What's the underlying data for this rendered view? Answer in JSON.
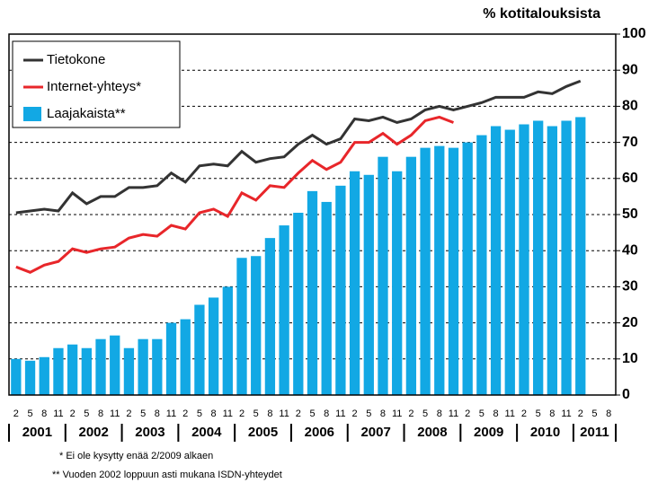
{
  "chart_data": {
    "type": "bar-line",
    "y_label": "% kotitalouksista",
    "categories": [
      "2",
      "5",
      "8",
      "11",
      "2",
      "5",
      "8",
      "11",
      "2",
      "5",
      "8",
      "11",
      "2",
      "5",
      "8",
      "11",
      "2",
      "5",
      "8",
      "11",
      "2",
      "5",
      "8",
      "11",
      "2",
      "5",
      "8",
      "11",
      "2",
      "5",
      "8",
      "11",
      "2",
      "5",
      "8",
      "11",
      "2",
      "5",
      "8",
      "11",
      "2",
      "5",
      "8"
    ],
    "years": [
      "2001",
      "2002",
      "2003",
      "2004",
      "2005",
      "2006",
      "2007",
      "2008",
      "2009",
      "2010",
      "2011"
    ],
    "series": [
      {
        "name": "Tietokone",
        "kind": "line",
        "color": "#333333",
        "values": [
          50.5,
          51,
          51.5,
          51,
          56,
          53,
          55,
          55,
          57.5,
          57.5,
          58,
          61.5,
          59,
          63.5,
          64,
          63.5,
          67.5,
          64.5,
          65.5,
          66,
          69.5,
          72,
          69.5,
          71,
          76.5,
          76,
          77,
          75.5,
          76.5,
          79,
          80,
          79,
          80,
          81,
          82.5,
          82.5,
          82.5,
          84,
          83.5,
          85.5,
          87,
          null,
          null
        ]
      },
      {
        "name": "Internet-yhteys*",
        "kind": "line",
        "color": "#e8262a",
        "values": [
          35.5,
          34,
          36,
          37,
          40.5,
          39.5,
          40.5,
          41,
          43.5,
          44.5,
          44,
          47,
          46,
          50.5,
          51.5,
          49.5,
          56,
          54,
          58,
          57.5,
          61.5,
          65,
          62.5,
          64.5,
          70,
          70,
          72.5,
          69.5,
          72,
          76,
          77,
          75.5,
          null,
          null,
          null,
          null,
          null,
          null,
          null,
          null,
          null,
          null,
          null
        ]
      },
      {
        "name": "Laajakaista**",
        "kind": "bar",
        "color": "#12a8e4",
        "values": [
          10,
          9.5,
          10.5,
          13,
          14,
          13,
          15.5,
          16.5,
          13,
          15.5,
          15.5,
          20,
          21,
          25,
          27,
          30,
          38,
          38.5,
          43.5,
          47,
          50.5,
          56.5,
          53.5,
          58,
          62,
          61,
          66,
          62,
          66,
          68.5,
          69,
          68.5,
          70,
          72,
          74.5,
          73.5,
          75,
          76,
          74.5,
          76,
          77,
          null,
          null
        ]
      }
    ],
    "ylim": [
      0,
      100
    ],
    "yticks": [
      0,
      10,
      20,
      30,
      40,
      50,
      60,
      70,
      80,
      90,
      100
    ],
    "grid": true,
    "legend": "top-left",
    "annotations": [
      "* Ei ole kysytty enää 2/2009 alkaen",
      "** Vuoden 2002 loppuun asti mukana ISDN-yhteydet"
    ]
  }
}
